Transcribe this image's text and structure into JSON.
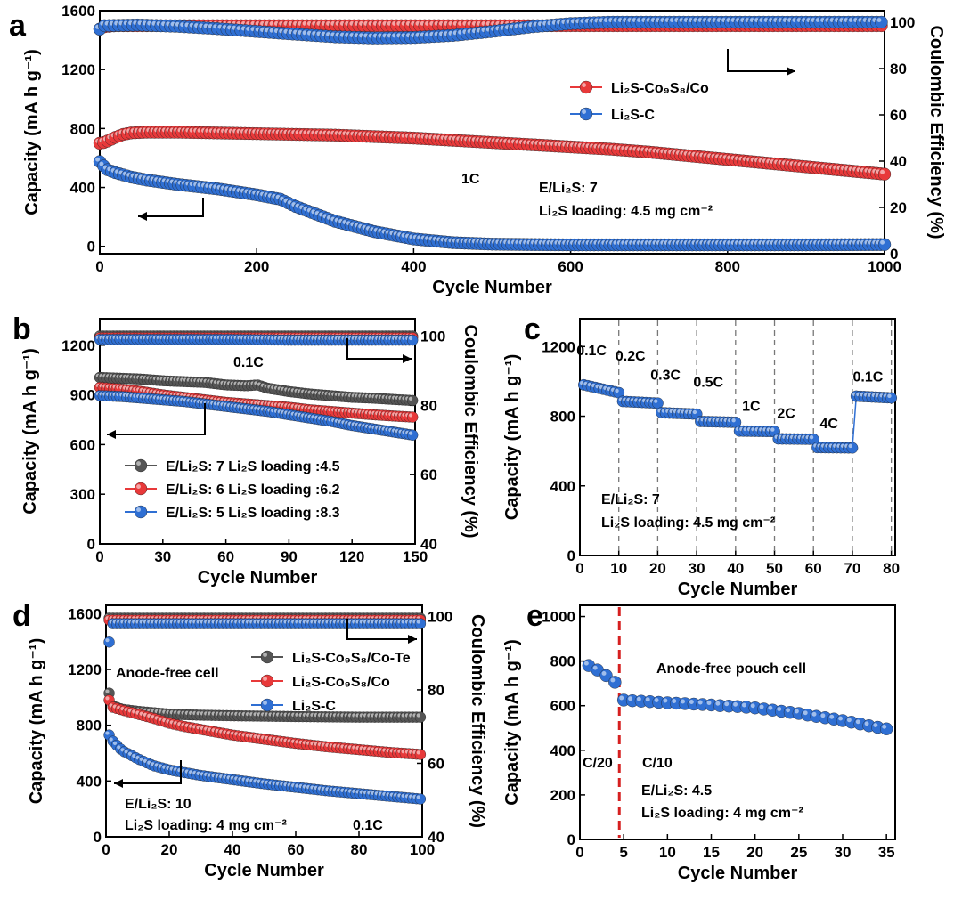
{
  "colors": {
    "red": "#e8393a",
    "blue": "#2f6fd3",
    "gray": "#555555",
    "dash_red": "#d62020"
  },
  "chart_data": [
    {
      "panel": "a",
      "type": "scatter",
      "xlabel": "Cycle Number",
      "ylabel": "Capacity (mA h g⁻¹)",
      "y2label": "Coulombic Efficiency (%)",
      "xlim": [
        0,
        1000
      ],
      "ylim": [
        -50,
        1600
      ],
      "y2lim": [
        0,
        105
      ],
      "xticks": [
        "0",
        "200",
        "400",
        "600",
        "800",
        "1000"
      ],
      "yticks": [
        "0",
        "400",
        "800",
        "1200",
        "1600"
      ],
      "y2ticks": [
        "0",
        "20",
        "40",
        "60",
        "80",
        "100"
      ],
      "legend": [
        {
          "label": "Li₂S-Co₉S₈/Co",
          "color": "red"
        },
        {
          "label": "Li₂S-C",
          "color": "blue"
        }
      ],
      "annotations": [
        "1C",
        "E/Li₂S: 7",
        "Li₂S loading: 4.5 mg cm⁻²"
      ],
      "series": [
        {
          "name": "Li₂S-Co₉S₈/Co capacity",
          "color": "red",
          "axis": "left",
          "x": [
            0,
            5,
            10,
            20,
            30,
            40,
            60,
            100,
            150,
            200,
            250,
            300,
            350,
            400,
            450,
            500,
            550,
            600,
            650,
            700,
            750,
            800,
            850,
            900,
            950,
            1000
          ],
          "y": [
            700,
            705,
            715,
            740,
            760,
            770,
            775,
            775,
            770,
            765,
            760,
            755,
            745,
            735,
            720,
            705,
            690,
            675,
            660,
            640,
            615,
            590,
            565,
            540,
            515,
            490
          ]
        },
        {
          "name": "Li₂S-C capacity",
          "color": "blue",
          "axis": "left",
          "x": [
            0,
            5,
            10,
            20,
            40,
            60,
            100,
            150,
            200,
            230,
            250,
            280,
            300,
            350,
            400,
            450,
            500,
            550,
            600,
            700,
            800,
            900,
            1000
          ],
          "y": [
            575,
            545,
            520,
            500,
            470,
            450,
            420,
            390,
            350,
            320,
            270,
            210,
            170,
            100,
            50,
            25,
            15,
            12,
            10,
            10,
            10,
            10,
            12
          ]
        },
        {
          "name": "Li₂S-Co₉S₈/Co CE",
          "color": "red",
          "axis": "right",
          "x": [
            0,
            5,
            20,
            100,
            200,
            300,
            400,
            500,
            600,
            700,
            800,
            900,
            1000
          ],
          "y": [
            97,
            98,
            98.5,
            98.5,
            98.5,
            98.5,
            98.5,
            98.5,
            98.5,
            98.5,
            98.5,
            98.5,
            98.5
          ]
        },
        {
          "name": "Li₂S-C CE",
          "color": "blue",
          "axis": "right",
          "x": [
            0,
            5,
            50,
            100,
            150,
            200,
            250,
            300,
            350,
            400,
            450,
            500,
            550,
            600,
            650,
            700,
            800,
            900,
            1000
          ],
          "y": [
            97,
            98.5,
            98.8,
            98.2,
            97.2,
            96,
            94.8,
            93.7,
            93.2,
            93.4,
            94.3,
            96,
            98,
            99.4,
            100,
            100,
            100,
            100,
            100
          ]
        }
      ]
    },
    {
      "panel": "b",
      "type": "scatter",
      "xlabel": "Cycle Number",
      "ylabel": "Capacity (mA h g⁻¹)",
      "y2label": "Coulombic Efficiency (%)",
      "xlim": [
        0,
        150
      ],
      "ylim": [
        0,
        1360
      ],
      "y2lim": [
        40,
        105
      ],
      "xticks": [
        "0",
        "30",
        "60",
        "90",
        "120",
        "150"
      ],
      "yticks": [
        "0",
        "300",
        "600",
        "900",
        "1200"
      ],
      "y2ticks": [
        "40",
        "60",
        "80",
        "100"
      ],
      "legend": [
        {
          "label": "E/Li₂S: 7   Li₂S loading :4.5",
          "color": "gray"
        },
        {
          "label": "E/Li₂S: 6   Li₂S loading :6.2",
          "color": "red"
        },
        {
          "label": "E/Li₂S: 5   Li₂S loading :8.3",
          "color": "blue"
        }
      ],
      "annotations": [
        "0.1C"
      ],
      "series": [
        {
          "name": "E/Li₂S 7 capacity",
          "color": "gray",
          "axis": "left",
          "x": [
            0,
            10,
            20,
            30,
            40,
            50,
            60,
            70,
            75,
            80,
            90,
            100,
            110,
            120,
            130,
            140,
            150
          ],
          "y": [
            1005,
            1000,
            995,
            985,
            980,
            975,
            960,
            955,
            960,
            940,
            920,
            905,
            895,
            885,
            880,
            872,
            865
          ]
        },
        {
          "name": "E/Li₂S 6 capacity",
          "color": "red",
          "axis": "left",
          "x": [
            0,
            10,
            20,
            30,
            40,
            50,
            60,
            70,
            80,
            90,
            100,
            110,
            120,
            130,
            140,
            150
          ],
          "y": [
            945,
            935,
            920,
            900,
            885,
            870,
            855,
            845,
            835,
            825,
            810,
            800,
            790,
            780,
            772,
            765
          ]
        },
        {
          "name": "E/Li₂S 5 capacity",
          "color": "blue",
          "axis": "left",
          "x": [
            0,
            10,
            20,
            30,
            40,
            50,
            60,
            70,
            80,
            90,
            100,
            110,
            120,
            130,
            140,
            150
          ],
          "y": [
            895,
            890,
            880,
            870,
            860,
            845,
            830,
            815,
            800,
            780,
            760,
            740,
            715,
            695,
            675,
            655
          ]
        },
        {
          "name": "E/Li₂S 7 CE",
          "color": "gray",
          "axis": "right",
          "x": [
            0,
            30,
            60,
            90,
            120,
            150
          ],
          "y": [
            100,
            100,
            100,
            100,
            100,
            100
          ]
        },
        {
          "name": "E/Li₂S 6 CE",
          "color": "red",
          "axis": "right",
          "x": [
            0,
            30,
            60,
            90,
            120,
            150
          ],
          "y": [
            99.5,
            99.5,
            99.5,
            99.5,
            99.5,
            99.5
          ]
        },
        {
          "name": "E/Li₂S 5 CE",
          "color": "blue",
          "axis": "right",
          "x": [
            0,
            30,
            60,
            90,
            120,
            150
          ],
          "y": [
            99,
            99,
            99,
            98.8,
            98.8,
            98.8
          ]
        }
      ]
    },
    {
      "panel": "c",
      "type": "scatter",
      "xlabel": "Cycle Number",
      "ylabel": "Capacity (mA h g⁻¹)",
      "xlim": [
        0,
        81
      ],
      "ylim": [
        0,
        1360
      ],
      "xticks": [
        "0",
        "10",
        "20",
        "30",
        "40",
        "50",
        "60",
        "70",
        "80"
      ],
      "yticks": [
        "0",
        "400",
        "800",
        "1200"
      ],
      "rate_labels": [
        {
          "label": "0.1C",
          "x": 3,
          "y": 1150
        },
        {
          "label": "0.2C",
          "x": 13,
          "y": 1120
        },
        {
          "label": "0.3C",
          "x": 22,
          "y": 1010
        },
        {
          "label": "0.5C",
          "x": 33,
          "y": 970
        },
        {
          "label": "1C",
          "x": 44,
          "y": 830
        },
        {
          "label": "2C",
          "x": 53,
          "y": 790
        },
        {
          "label": "4C",
          "x": 64,
          "y": 730
        },
        {
          "label": "0.1C",
          "x": 74,
          "y": 1000
        }
      ],
      "dividers": [
        10,
        20,
        30,
        40,
        50,
        60,
        70,
        80
      ],
      "annotations": [
        "E/Li₂S: 7",
        "Li₂S loading: 4.5 mg cm⁻²"
      ],
      "series": [
        {
          "name": "Rate capability",
          "color": "blue",
          "axis": "left",
          "segments": [
            {
              "x0": 1,
              "x1": 10,
              "y0": 980,
              "y1": 935
            },
            {
              "x0": 11,
              "x1": 20,
              "y0": 885,
              "y1": 875
            },
            {
              "x0": 21,
              "x1": 30,
              "y0": 820,
              "y1": 812
            },
            {
              "x0": 31,
              "x1": 40,
              "y0": 770,
              "y1": 765
            },
            {
              "x0": 41,
              "x1": 50,
              "y0": 715,
              "y1": 712
            },
            {
              "x0": 51,
              "x1": 60,
              "y0": 670,
              "y1": 668
            },
            {
              "x0": 61,
              "x1": 70,
              "y0": 620,
              "y1": 618
            },
            {
              "x0": 71,
              "x1": 80,
              "y0": 915,
              "y1": 905
            }
          ]
        }
      ]
    },
    {
      "panel": "d",
      "type": "scatter",
      "xlabel": "Cycle Number",
      "ylabel": "Capacity (mA h g⁻¹)",
      "y2label": "Coulombic Efficiency (%)",
      "xlim": [
        0,
        100
      ],
      "ylim": [
        0,
        1660
      ],
      "y2lim": [
        40,
        103
      ],
      "xticks": [
        "0",
        "20",
        "40",
        "60",
        "80",
        "100"
      ],
      "yticks": [
        "0",
        "400",
        "800",
        "1200",
        "1600"
      ],
      "y2ticks": [
        "40",
        "60",
        "80",
        "100"
      ],
      "legend": [
        {
          "label": "Li₂S-Co₉S₈/Co-Te",
          "color": "gray"
        },
        {
          "label": "Li₂S-Co₉S₈/Co",
          "color": "red"
        },
        {
          "label": "Li₂S-C",
          "color": "blue"
        }
      ],
      "annotations": [
        "Anode-free cell",
        "E/Li₂S: 10",
        "Li₂S loading: 4 mg cm⁻²",
        "0.1C"
      ],
      "series": [
        {
          "name": "Li₂S-Co₉S₈/Co-Te capacity",
          "color": "gray",
          "axis": "left",
          "x": [
            1,
            2,
            5,
            10,
            15,
            20,
            30,
            40,
            50,
            60,
            70,
            80,
            90,
            100
          ],
          "y": [
            1030,
            940,
            915,
            900,
            890,
            880,
            872,
            868,
            865,
            862,
            860,
            858,
            858,
            858
          ]
        },
        {
          "name": "Li₂S-Co₉S₈/Co capacity",
          "color": "red",
          "axis": "left",
          "x": [
            1,
            2,
            5,
            10,
            15,
            20,
            25,
            30,
            40,
            50,
            60,
            70,
            80,
            90,
            100
          ],
          "y": [
            980,
            930,
            910,
            880,
            850,
            815,
            790,
            770,
            730,
            700,
            670,
            645,
            625,
            605,
            590
          ]
        },
        {
          "name": "Li₂S-C capacity",
          "color": "blue",
          "axis": "left",
          "x": [
            1,
            2,
            5,
            10,
            15,
            20,
            30,
            40,
            50,
            60,
            70,
            80,
            90,
            100
          ],
          "y": [
            730,
            690,
            620,
            560,
            510,
            480,
            440,
            410,
            380,
            355,
            330,
            310,
            290,
            270
          ]
        },
        {
          "name": "Li₂S-Co₉S₈/Co-Te CE",
          "color": "gray",
          "axis": "right",
          "x": [
            1,
            100
          ],
          "y": [
            99.5,
            99.5
          ]
        },
        {
          "name": "Li₂S-Co₉S₈/Co CE",
          "color": "red",
          "axis": "right",
          "x": [
            1,
            100
          ],
          "y": [
            99,
            99
          ]
        },
        {
          "name": "Li₂S-C CE",
          "color": "blue",
          "axis": "right",
          "x": [
            1,
            2,
            100
          ],
          "y": [
            93,
            98,
            98
          ]
        }
      ]
    },
    {
      "panel": "e",
      "type": "scatter",
      "xlabel": "Cycle Number",
      "ylabel": "Capacity (mA h g⁻¹)",
      "xlim": [
        0,
        36
      ],
      "ylim": [
        0,
        1050
      ],
      "xticks": [
        "0",
        "5",
        "10",
        "15",
        "20",
        "25",
        "30",
        "35"
      ],
      "yticks": [
        "0",
        "200",
        "400",
        "600",
        "800",
        "1000"
      ],
      "divider_x": 4.5,
      "annotations": [
        "Anode-free pouch cell",
        "C/20",
        "C/10",
        "E/Li₂S: 4.5",
        "Li₂S loading: 4 mg cm⁻²"
      ],
      "series": [
        {
          "name": "Anode-free pouch cell",
          "color": "blue",
          "axis": "left",
          "x": [
            1,
            2,
            3,
            4,
            5,
            6,
            7,
            8,
            9,
            10,
            11,
            12,
            13,
            14,
            15,
            16,
            17,
            18,
            19,
            20,
            21,
            22,
            23,
            24,
            25,
            26,
            27,
            28,
            29,
            30,
            31,
            32,
            33,
            34,
            35
          ],
          "y": [
            780,
            760,
            735,
            705,
            625,
            622,
            620,
            618,
            615,
            613,
            611,
            609,
            607,
            605,
            603,
            600,
            598,
            596,
            593,
            590,
            585,
            580,
            575,
            570,
            565,
            558,
            552,
            546,
            540,
            533,
            526,
            518,
            510,
            503,
            496
          ]
        }
      ]
    }
  ]
}
